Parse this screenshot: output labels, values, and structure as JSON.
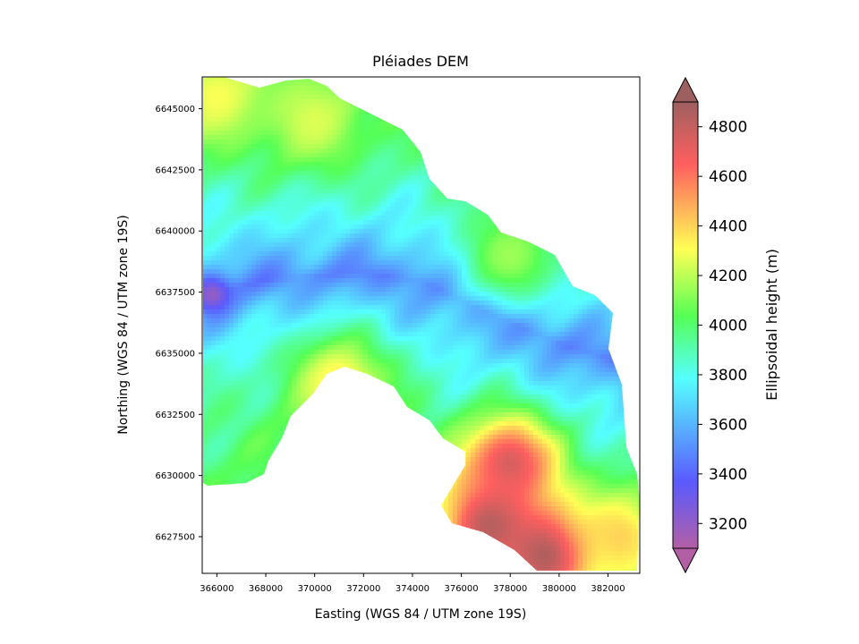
{
  "chart_data": {
    "type": "heatmap",
    "title": "Pléiades DEM",
    "xlabel": "Easting (WGS 84 / UTM zone 19S)",
    "ylabel": "Northing (WGS 84 / UTM zone 19S)",
    "xlim": [
      365400,
      383300
    ],
    "ylim": [
      6626000,
      6646300
    ],
    "xticks": [
      366000,
      368000,
      370000,
      372000,
      374000,
      376000,
      378000,
      380000,
      382000
    ],
    "yticks": [
      6627500,
      6630000,
      6632500,
      6635000,
      6637500,
      6640000,
      6642500,
      6645000
    ],
    "colorbar": {
      "label": "Ellipsoidal height (m)",
      "range": [
        3100,
        4900
      ],
      "ticks": [
        3200,
        3400,
        3600,
        3800,
        4000,
        4200,
        4400,
        4600,
        4800
      ],
      "extend": "both",
      "colormap_stops": [
        "#b35fa5",
        "#5a5aff",
        "#55ffff",
        "#55ff55",
        "#ffff55",
        "#ff5f5f",
        "#9e5f5f"
      ]
    },
    "grid": false,
    "terrain": {
      "valley": [
        [
          365400,
          6637300
        ],
        [
          368000,
          6638000
        ],
        [
          372000,
          6638300
        ],
        [
          374500,
          6637900
        ],
        [
          377000,
          6636700
        ],
        [
          380000,
          6635400
        ],
        [
          383000,
          6634500
        ]
      ],
      "peaks": [
        {
          "x": 379500,
          "y": 6626800,
          "elevation": 4900
        },
        {
          "x": 377200,
          "y": 6628000,
          "elevation": 4850
        },
        {
          "x": 378000,
          "y": 6630500,
          "elevation": 4750
        },
        {
          "x": 382500,
          "y": 6627500,
          "elevation": 4400
        },
        {
          "x": 371000,
          "y": 6633800,
          "elevation": 4350
        },
        {
          "x": 366000,
          "y": 6645500,
          "elevation": 4300
        },
        {
          "x": 370000,
          "y": 6644500,
          "elevation": 4250
        },
        {
          "x": 378000,
          "y": 6639000,
          "elevation": 4150
        }
      ],
      "deep_spot": {
        "x": 365800,
        "y": 6637400,
        "elevation": 3200
      }
    }
  }
}
